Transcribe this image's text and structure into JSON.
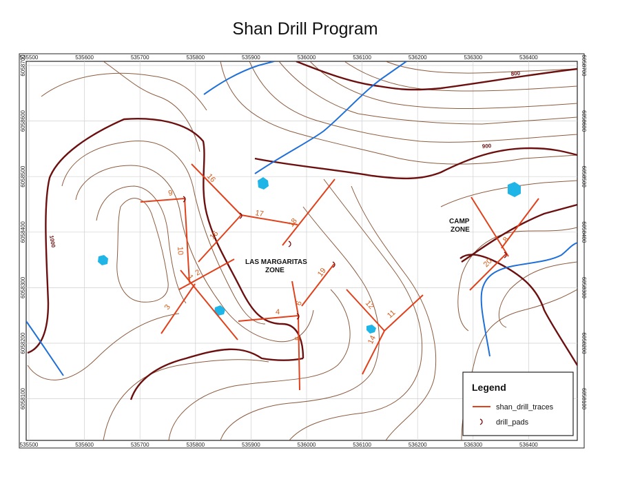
{
  "title": "Shan Drill Program",
  "axes": {
    "x_ticks": [
      "535500",
      "535600",
      "535700",
      "535800",
      "535900",
      "536000",
      "536100",
      "536200",
      "536300",
      "536400"
    ],
    "y_ticks": [
      "6058700",
      "6058600",
      "6058500",
      "6058400",
      "6058300",
      "6058200",
      "6058100"
    ]
  },
  "contour_labels": [
    "800",
    "900",
    "1000"
  ],
  "zones": [
    {
      "lines": [
        "LAS MARGARITAS",
        "ZONE"
      ]
    },
    {
      "lines": [
        "CAMP",
        "ZONE"
      ]
    }
  ],
  "drill_traces": [
    {
      "id": "1"
    },
    {
      "id": "2"
    },
    {
      "id": "3"
    },
    {
      "id": "4"
    },
    {
      "id": "6"
    },
    {
      "id": "9"
    },
    {
      "id": "10"
    },
    {
      "id": "11"
    },
    {
      "id": "12"
    },
    {
      "id": "14"
    },
    {
      "id": "15"
    },
    {
      "id": "16"
    },
    {
      "id": "17"
    },
    {
      "id": "18"
    },
    {
      "id": "19"
    },
    {
      "id": "20"
    },
    {
      "id": "5"
    },
    {
      "id": "8"
    }
  ],
  "legend": {
    "title": "Legend",
    "items": [
      {
        "label": "shan_drill_traces",
        "color": "#e0401a"
      },
      {
        "label": "drill_pads",
        "color": "#7a0a0a"
      }
    ]
  },
  "colors": {
    "contour_minor": "#8b5a3c",
    "contour_major": "#6b0f0f",
    "stream": "#1f6fd8",
    "pond": "#1fb5e6",
    "trace": "#e0401a"
  }
}
